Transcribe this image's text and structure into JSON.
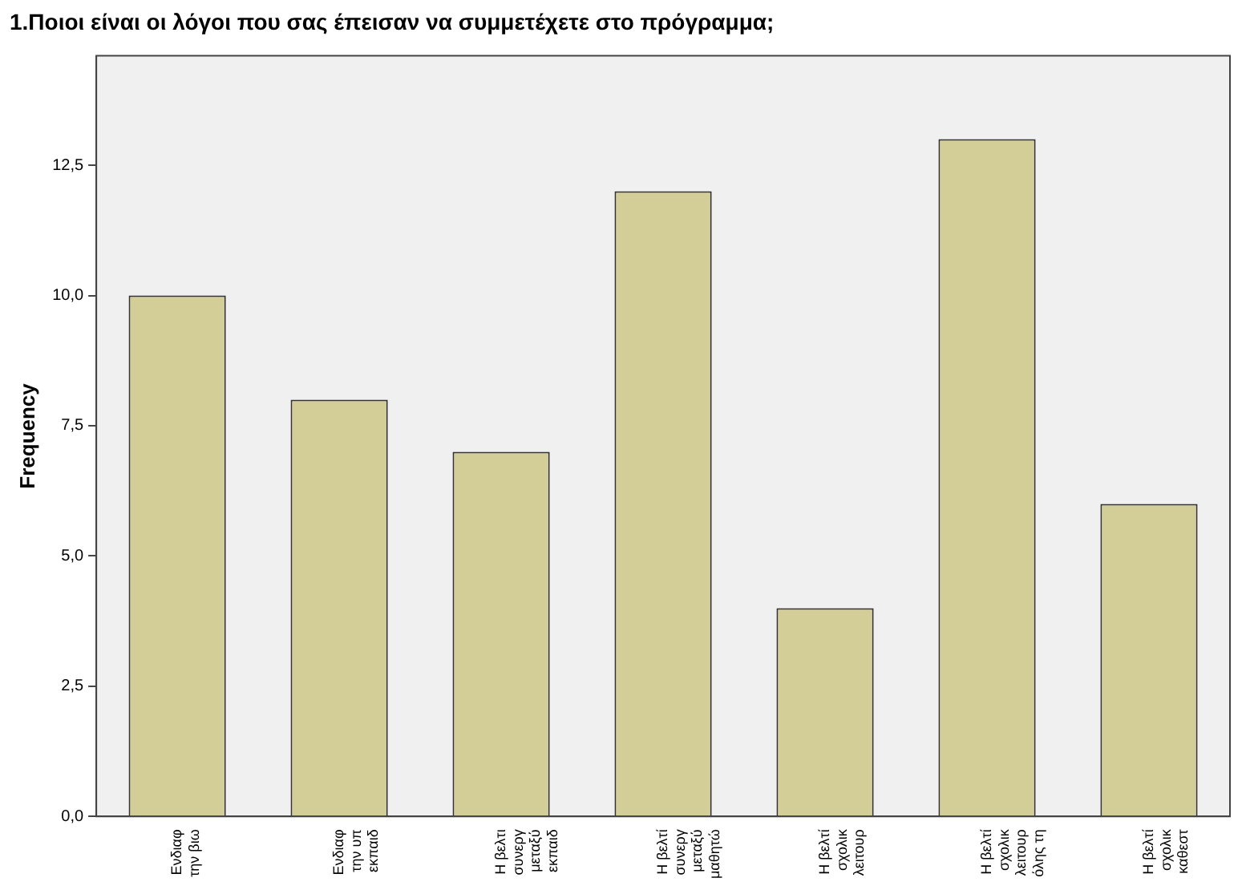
{
  "chart_data": {
    "type": "bar",
    "title": "1.Ποιοι είναι οι λόγοι που σας έπεισαν να συμμετέχετε στο πρόγραμμα;",
    "ylabel": "Frequency",
    "categories": [
      [
        "Ενδιαφ",
        "την βιω"
      ],
      [
        "Ενδιαφ",
        "την υπ",
        "εκπαιδ"
      ],
      [
        "Η βελτι",
        "συνεργ",
        "μεταξύ",
        "εκπαιδ"
      ],
      [
        "Η βελτί",
        "συνεργ",
        "μεταξύ",
        "μαθητώ"
      ],
      [
        "Η βελτί",
        "σχολικ",
        "λειτουρ"
      ],
      [
        "Η βελτί",
        "σχολικ",
        "λειτουρ",
        "όλης τη"
      ],
      [
        "Η βελτί",
        "σχολικ",
        "καθεστ"
      ]
    ],
    "values": [
      10,
      8,
      7,
      12,
      4,
      13,
      6
    ],
    "color": "#d3ce97",
    "ylim": [
      0,
      14.6
    ],
    "yticks": [
      {
        "value": 0,
        "label": "0,0"
      },
      {
        "value": 2.5,
        "label": "2,5"
      },
      {
        "value": 5,
        "label": "5,0"
      },
      {
        "value": 7.5,
        "label": "7,5"
      },
      {
        "value": 10,
        "label": "10,0"
      },
      {
        "value": 12.5,
        "label": "12,5"
      }
    ],
    "grid": false,
    "legend": false
  }
}
